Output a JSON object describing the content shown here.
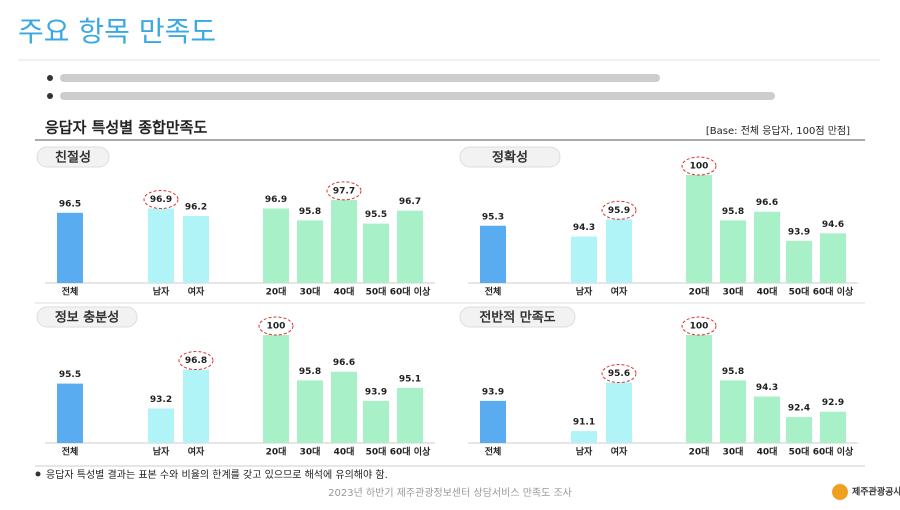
{
  "page": {
    "title": "주요 항목 만족도",
    "section": "응답자 특성별 종합만족도",
    "base": "[Base: 전체 응답자, 100점 만점]",
    "note": "응답자 특성별 결과는 표본 수와 비율의 한계를 갖고 있으므로 해석에 유의해야 함.",
    "footer": "2023년 하반기 제주관광정보센터 상담서비스 만족도 조사",
    "logo": "제주관광공사"
  },
  "chart_data": [
    {
      "type": "bar",
      "title": "친절성",
      "categories": [
        "전체",
        "남자",
        "여자",
        "20대",
        "30대",
        "40대",
        "50대",
        "60대 이상"
      ],
      "values": [
        96.5,
        96.9,
        96.2,
        96.9,
        95.8,
        97.7,
        95.5,
        96.7
      ],
      "colors": [
        "#5aacf0",
        "#b0f4f8",
        "#b0f4f8",
        "#a8f0c8",
        "#a8f0c8",
        "#a8f0c8",
        "#a8f0c8",
        "#a8f0c8"
      ],
      "circled": [
        false,
        true,
        false,
        false,
        false,
        true,
        false,
        false
      ],
      "ylim": [
        90,
        100
      ]
    },
    {
      "type": "bar",
      "title": "정확성",
      "categories": [
        "전체",
        "남자",
        "여자",
        "20대",
        "30대",
        "40대",
        "50대",
        "60대 이상"
      ],
      "values": [
        95.3,
        94.3,
        95.9,
        100,
        95.8,
        96.6,
        93.9,
        94.6
      ],
      "colors": [
        "#5aacf0",
        "#b0f4f8",
        "#b0f4f8",
        "#a8f0c8",
        "#a8f0c8",
        "#a8f0c8",
        "#a8f0c8",
        "#a8f0c8"
      ],
      "circled": [
        false,
        false,
        true,
        true,
        false,
        false,
        false,
        false
      ],
      "ylim": [
        90,
        100
      ]
    },
    {
      "type": "bar",
      "title": "정보 충분성",
      "categories": [
        "전체",
        "남자",
        "여자",
        "20대",
        "30대",
        "40대",
        "50대",
        "60대 이상"
      ],
      "values": [
        95.5,
        93.2,
        96.8,
        100,
        95.8,
        96.6,
        93.9,
        95.1
      ],
      "colors": [
        "#5aacf0",
        "#b0f4f8",
        "#b0f4f8",
        "#a8f0c8",
        "#a8f0c8",
        "#a8f0c8",
        "#a8f0c8",
        "#a8f0c8"
      ],
      "circled": [
        false,
        false,
        true,
        true,
        false,
        false,
        false,
        false
      ],
      "ylim": [
        90,
        100
      ]
    },
    {
      "type": "bar",
      "title": "전반적 만족도",
      "categories": [
        "전체",
        "남자",
        "여자",
        "20대",
        "30대",
        "40대",
        "50대",
        "60대 이상"
      ],
      "values": [
        93.9,
        91.1,
        95.6,
        100,
        95.8,
        94.3,
        92.4,
        92.9
      ],
      "colors": [
        "#5aacf0",
        "#b0f4f8",
        "#b0f4f8",
        "#a8f0c8",
        "#a8f0c8",
        "#a8f0c8",
        "#a8f0c8",
        "#a8f0c8"
      ],
      "circled": [
        false,
        false,
        true,
        true,
        false,
        false,
        false,
        false
      ],
      "ylim": [
        90,
        100
      ]
    }
  ]
}
